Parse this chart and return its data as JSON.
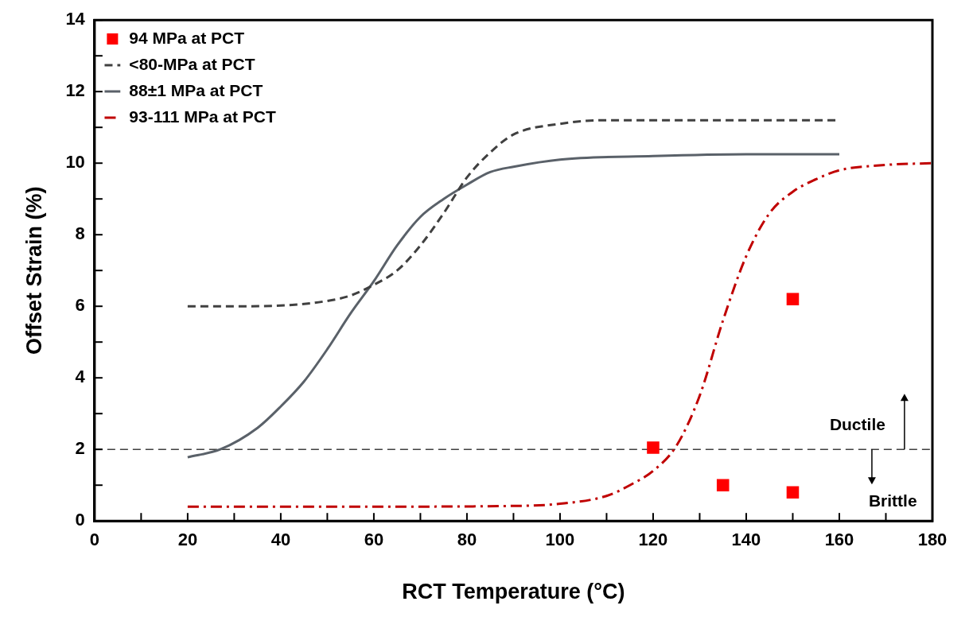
{
  "chart_data": {
    "type": "line",
    "xlabel": "RCT Temperature (°C)",
    "ylabel": "Offset Strain (%)",
    "xlim": [
      0,
      180
    ],
    "ylim": [
      0,
      14
    ],
    "xticks": [
      0,
      {
        "value": 10,
        "label": null
      },
      20,
      {
        "value": 30,
        "label": null
      },
      40,
      {
        "value": 50,
        "label": null
      },
      60,
      {
        "value": 70,
        "label": null
      },
      80,
      {
        "value": 90,
        "label": null
      },
      100,
      {
        "value": 110,
        "label": null
      },
      120,
      {
        "value": 130,
        "label": null
      },
      140,
      {
        "value": 150,
        "label": null
      },
      160,
      {
        "value": 170,
        "label": null
      },
      180
    ],
    "yticks": [
      0,
      {
        "value": 1,
        "label": null
      },
      2,
      {
        "value": 3,
        "label": null
      },
      4,
      {
        "value": 5,
        "label": null
      },
      6,
      {
        "value": 7,
        "label": null
      },
      8,
      {
        "value": 9,
        "label": null
      },
      10,
      {
        "value": 11,
        "label": null
      },
      12,
      {
        "value": 13,
        "label": null
      },
      14
    ],
    "grid": false,
    "legend": "top left",
    "series": [
      {
        "name": "94 MPa at PCT",
        "type": "scatter",
        "marker": "square",
        "color": "#ff0000",
        "x": [
          120,
          135,
          150,
          150
        ],
        "values": [
          2.05,
          1.0,
          0.8,
          6.2
        ]
      },
      {
        "name": "<80-MPa at PCT",
        "type": "line",
        "line_style": "dashed",
        "marker": "none",
        "color": "#404040",
        "x": [
          20,
          30,
          40,
          50,
          55,
          60,
          65,
          70,
          75,
          80,
          85,
          90,
          100,
          110,
          130,
          160
        ],
        "values": [
          6.0,
          6.0,
          6.02,
          6.15,
          6.3,
          6.6,
          7.0,
          7.7,
          8.6,
          9.6,
          10.3,
          10.8,
          11.1,
          11.2,
          11.2,
          11.2
        ]
      },
      {
        "name": "88±1 MPa at PCT",
        "type": "line",
        "line_style": "solid",
        "marker": "none",
        "color": "#5a6169",
        "x": [
          20,
          27,
          35,
          40,
          45,
          50,
          55,
          60,
          65,
          70,
          75,
          80,
          85,
          90,
          100,
          120,
          140,
          160
        ],
        "values": [
          1.78,
          2.0,
          2.6,
          3.2,
          3.9,
          4.8,
          5.8,
          6.7,
          7.7,
          8.5,
          9.0,
          9.4,
          9.75,
          9.9,
          10.1,
          10.2,
          10.25,
          10.25
        ]
      },
      {
        "name": "93-111 MPa at PCT",
        "type": "line",
        "line_style": "dashdot",
        "marker": "none",
        "color": "#c00000",
        "x": [
          20,
          60,
          90,
          100,
          110,
          115,
          120,
          125,
          130,
          135,
          140,
          145,
          150,
          155,
          160,
          170,
          180
        ],
        "values": [
          0.4,
          0.4,
          0.42,
          0.48,
          0.7,
          1.0,
          1.4,
          2.1,
          3.5,
          5.6,
          7.4,
          8.6,
          9.2,
          9.55,
          9.8,
          9.95,
          10.0
        ]
      }
    ],
    "ref_lines": [
      {
        "axis": "y",
        "value": 2,
        "color": "#404040",
        "line_style": "dashed"
      }
    ],
    "annotations": [
      {
        "text": "Ductile",
        "x": 174,
        "y": 2
      },
      {
        "text": "Brittle",
        "x": 167,
        "y": 2
      }
    ]
  }
}
